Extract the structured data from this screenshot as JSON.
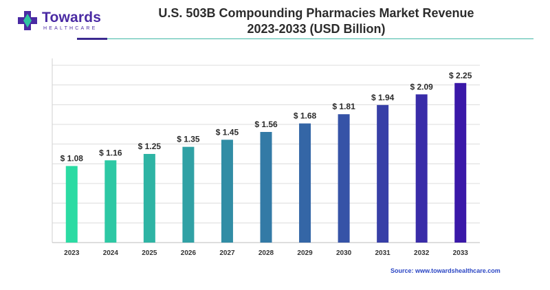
{
  "brand": {
    "name": "Towards",
    "tagline": "HEALTHCARE"
  },
  "title": {
    "line1": "U.S. 503B Compounding Pharmacies Market Revenue",
    "line2": "2023-2033 (USD Billion)"
  },
  "source": "Source: www.towardshealthcare.com",
  "colors": {
    "logo_purple": "#4a2aa3",
    "logo_teal": "#2ec4a0",
    "bar_start": "#2bdba3",
    "bar_end": "#3a18a8"
  },
  "chart_data": {
    "type": "bar",
    "categories": [
      "2023",
      "2024",
      "2025",
      "2026",
      "2027",
      "2028",
      "2029",
      "2030",
      "2031",
      "2032",
      "2033"
    ],
    "values": [
      1.08,
      1.16,
      1.25,
      1.35,
      1.45,
      1.56,
      1.68,
      1.81,
      1.94,
      2.09,
      2.25
    ],
    "value_labels": [
      "$ 1.08",
      "$ 1.16",
      "$ 1.25",
      "$ 1.35",
      "$ 1.45",
      "$ 1.56",
      "$ 1.68",
      "$ 1.81",
      "$ 1.94",
      "$ 2.09",
      "$ 2.25"
    ],
    "title": "U.S. 503B Compounding Pharmacies Market Revenue 2023-2033 (USD Billion)",
    "xlabel": "",
    "ylabel": "",
    "ylim": [
      0,
      2.5
    ],
    "grid": true,
    "legend": "none"
  }
}
